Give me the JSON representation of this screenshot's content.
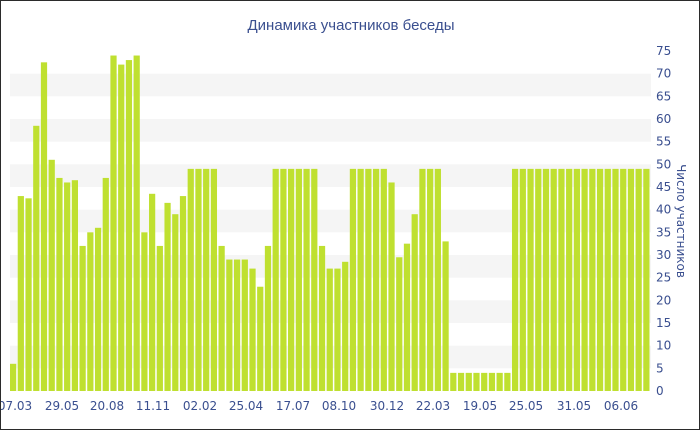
{
  "chart_data": {
    "type": "bar",
    "title": "Динамика участников беседы",
    "xlabel": "",
    "ylabel": "Число участников",
    "y_axis_side": "right",
    "ylim": [
      0,
      75
    ],
    "y_ticks": [
      0,
      5,
      10,
      15,
      20,
      25,
      30,
      35,
      40,
      45,
      50,
      55,
      60,
      65,
      70,
      75
    ],
    "grid": "alternating horizontal bands",
    "legend": "none",
    "bar_color": "#bfe030",
    "band_color": "#f5f5f5",
    "text_color": "#3a4f8f",
    "x_tick_labels": [
      "07.03",
      "29.05",
      "20.08",
      "11.11",
      "02.02",
      "25.04",
      "17.07",
      "08.10",
      "30.12",
      "22.03",
      "19.05",
      "25.05",
      "31.05",
      "06.06"
    ],
    "values": [
      6,
      43,
      42.5,
      58.5,
      72.5,
      51,
      47,
      46,
      46.5,
      32,
      35,
      36,
      47,
      74,
      72,
      73,
      74,
      35,
      43.5,
      32,
      41.5,
      39,
      43,
      49,
      49,
      49,
      49,
      32,
      29,
      29,
      29,
      27,
      23,
      32,
      49,
      49,
      49,
      49,
      49,
      49,
      32,
      27,
      27,
      28.5,
      49,
      49,
      49,
      49,
      49,
      46,
      29.5,
      32.5,
      39,
      49,
      49,
      49,
      33,
      4,
      4,
      4,
      4,
      4,
      4,
      4,
      4,
      49,
      49,
      49,
      49,
      49,
      49,
      49,
      49,
      49,
      49,
      49,
      49,
      49,
      49,
      49,
      49,
      49,
      49
    ]
  }
}
